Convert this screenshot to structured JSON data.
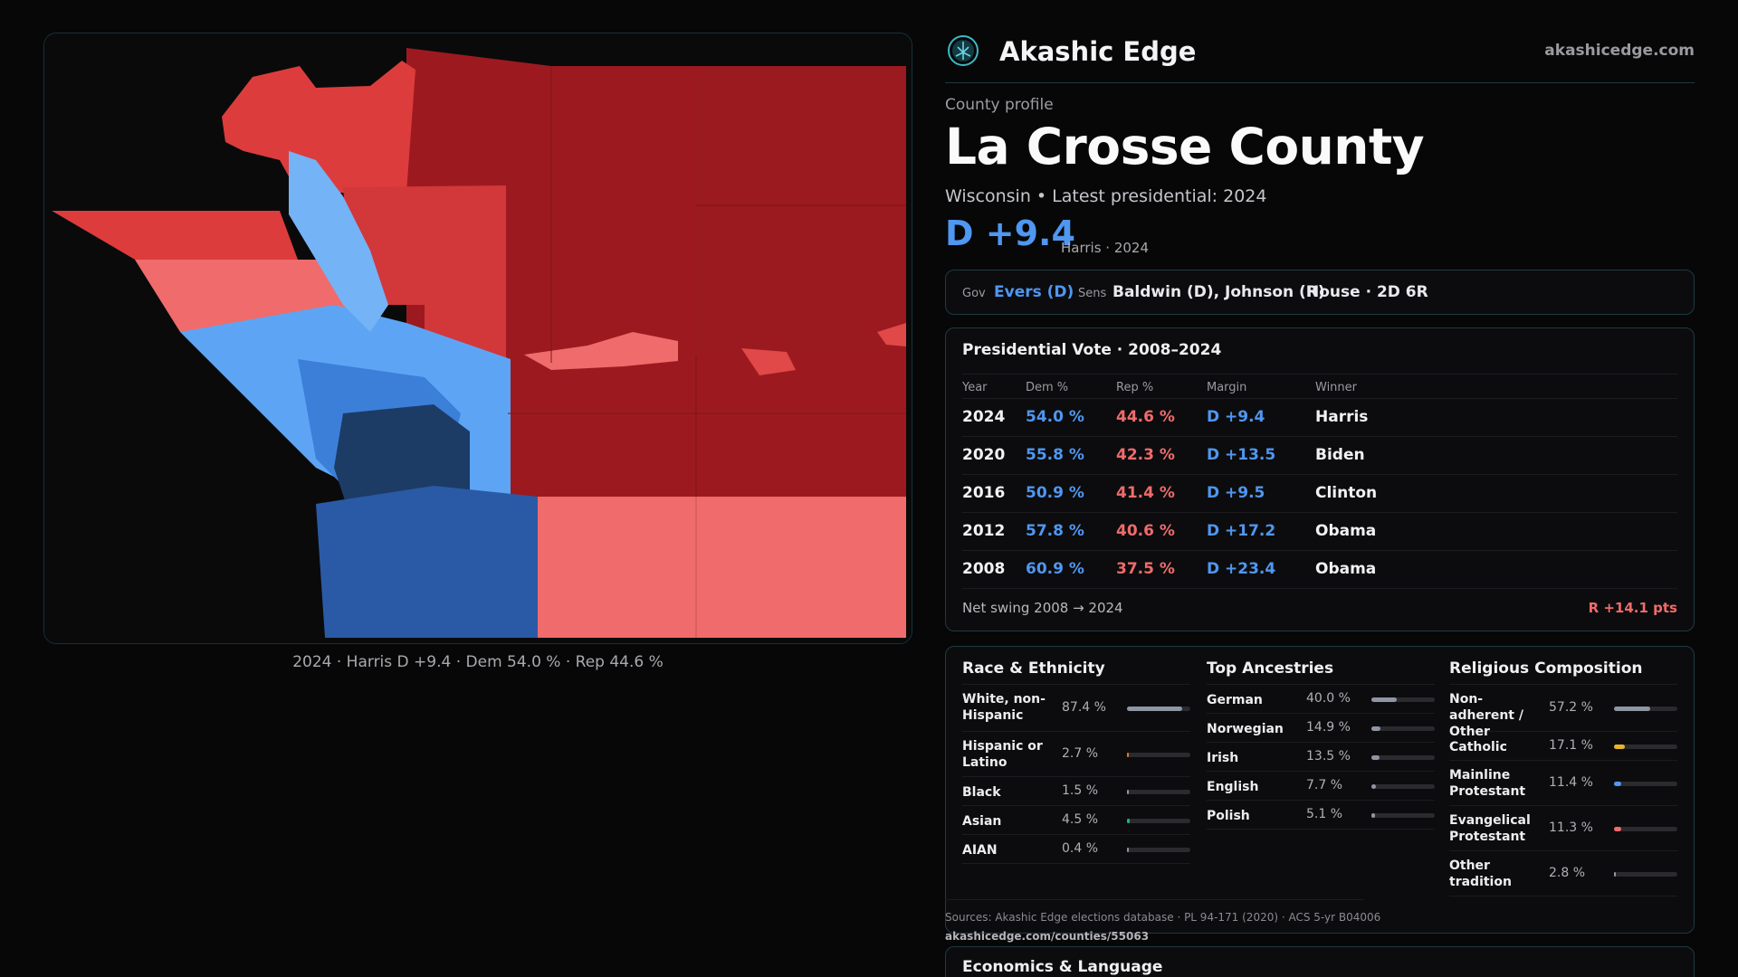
{
  "colors": {
    "dem": "#4f97f0",
    "rep": "#f06b6b",
    "background": "#070708",
    "border": "#1f3a40"
  },
  "map": {
    "caption": "2024 · Harris D +9.4 · Dem 54.0 % · Rep 44.6 %"
  },
  "header": {
    "logo_icon": "tree-of-life-icon",
    "brand": "Akashic Edge",
    "site": "akashicedge.com"
  },
  "profile": {
    "eyebrow": "County profile",
    "county": "La Crosse County",
    "subtitle": "Wisconsin • Latest presidential: 2024",
    "margin": "D +9.4",
    "margin_note": "Harris · 2024"
  },
  "officials": {
    "gov_label": "Gov",
    "gov_value": "Evers (D)",
    "sens_label": "Sens",
    "sens_value": "Baldwin (D), Johnson (R)",
    "house_value": "House · 2D 6R"
  },
  "presidential": {
    "title": "Presidential Vote · 2008–2024",
    "headers": [
      "Year",
      "Dem %",
      "Rep %",
      "Margin",
      "Winner"
    ],
    "rows": [
      {
        "year": "2024",
        "dem": "54.0 %",
        "rep": "44.6 %",
        "margin": "D +9.4",
        "winner": "Harris"
      },
      {
        "year": "2020",
        "dem": "55.8 %",
        "rep": "42.3 %",
        "margin": "D +13.5",
        "winner": "Biden"
      },
      {
        "year": "2016",
        "dem": "50.9 %",
        "rep": "41.4 %",
        "margin": "D +9.5",
        "winner": "Clinton"
      },
      {
        "year": "2012",
        "dem": "57.8 %",
        "rep": "40.6 %",
        "margin": "D +17.2",
        "winner": "Obama"
      },
      {
        "year": "2008",
        "dem": "60.9 %",
        "rep": "37.5 %",
        "margin": "D +23.4",
        "winner": "Obama"
      }
    ],
    "swing_label": "Net swing 2008 → 2024",
    "swing_value": "R +14.1 pts"
  },
  "race": {
    "title": "Race & Ethnicity",
    "items": [
      {
        "name": "White, non-Hispanic",
        "value": "87.4 %",
        "fraction": 0.874,
        "color": "#8e96a3"
      },
      {
        "name": "Hispanic or Latino",
        "value": "2.7 %",
        "fraction": 0.027,
        "color": "#e0792e"
      },
      {
        "name": "Black",
        "value": "1.5 %",
        "fraction": 0.015,
        "color": "#8e96a3"
      },
      {
        "name": "Asian",
        "value": "4.5 %",
        "fraction": 0.045,
        "color": "#27b07a"
      },
      {
        "name": "AIAN",
        "value": "0.4 %",
        "fraction": 0.004,
        "color": "#8e96a3"
      }
    ]
  },
  "ancestry": {
    "title": "Top Ancestries",
    "items": [
      {
        "name": "German",
        "value": "40.0 %",
        "fraction": 0.4,
        "color": "#8e96a3"
      },
      {
        "name": "Norwegian",
        "value": "14.9 %",
        "fraction": 0.149,
        "color": "#8e96a3"
      },
      {
        "name": "Irish",
        "value": "13.5 %",
        "fraction": 0.135,
        "color": "#8e96a3"
      },
      {
        "name": "English",
        "value": "7.7 %",
        "fraction": 0.077,
        "color": "#8e96a3"
      },
      {
        "name": "Polish",
        "value": "5.1 %",
        "fraction": 0.051,
        "color": "#8e96a3"
      }
    ]
  },
  "religion": {
    "title": "Religious Composition",
    "items": [
      {
        "name": "Non-adherent / Other",
        "value": "57.2 %",
        "fraction": 0.572,
        "color": "#8e96a3"
      },
      {
        "name": "Catholic",
        "value": "17.1 %",
        "fraction": 0.171,
        "color": "#e6b52a"
      },
      {
        "name": "Mainline Protestant",
        "value": "11.4 %",
        "fraction": 0.114,
        "color": "#4f97f0"
      },
      {
        "name": "Evangelical Protestant",
        "value": "11.3 %",
        "fraction": 0.113,
        "color": "#f06b6b"
      },
      {
        "name": "Other tradition",
        "value": "2.8 %",
        "fraction": 0.028,
        "color": "#8e96a3"
      }
    ]
  },
  "sources": {
    "text": "Sources: Akashic Edge elections database · PL 94-171 (2020) · ACS 5-yr B04006",
    "link": "akashicedge.com/counties/55063"
  },
  "economics": {
    "title": "Economics & Language"
  }
}
